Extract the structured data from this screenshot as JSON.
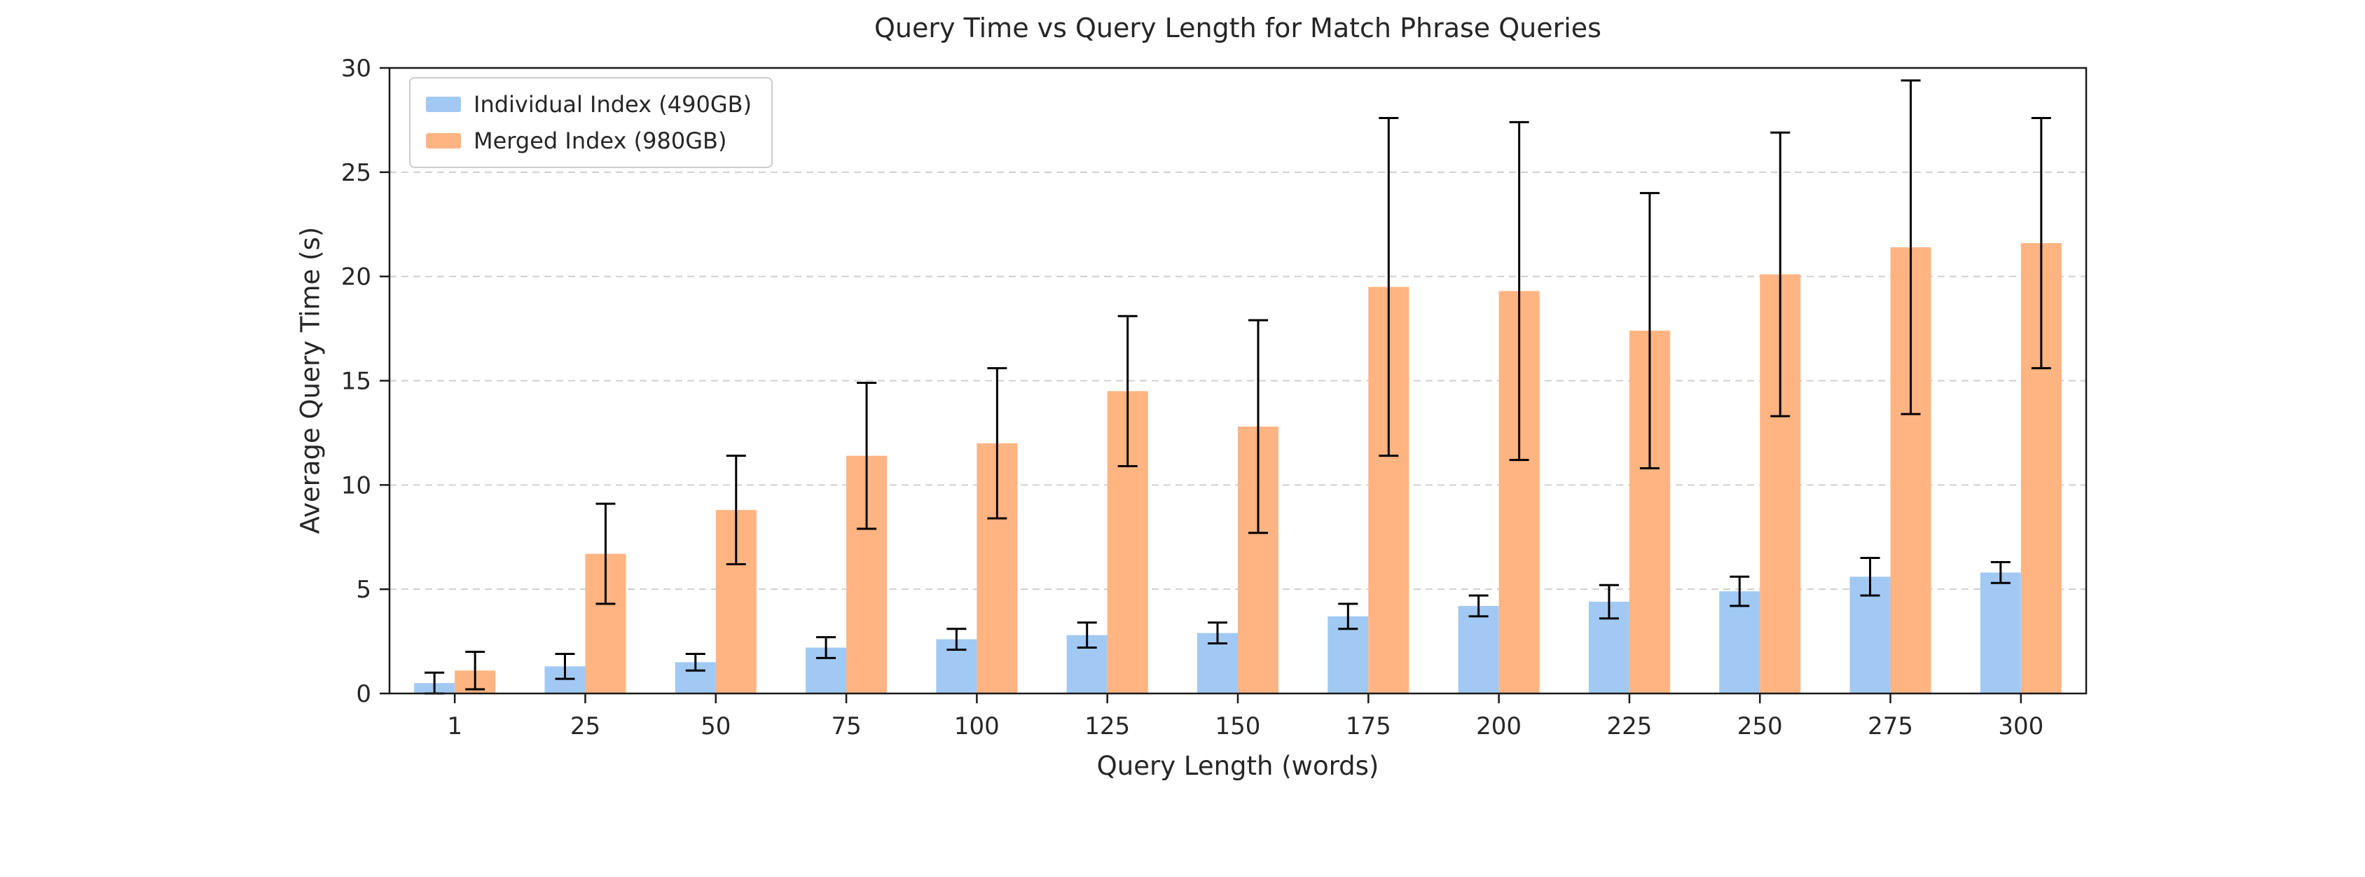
{
  "chart_data": {
    "type": "bar",
    "title": "Query Time vs Query Length for Match Phrase Queries",
    "xlabel": "Query Length (words)",
    "ylabel": "Average Query Time (s)",
    "categories": [
      "1",
      "25",
      "50",
      "75",
      "100",
      "125",
      "150",
      "175",
      "200",
      "225",
      "250",
      "275",
      "300"
    ],
    "ylim": [
      0,
      30
    ],
    "yticks": [
      0,
      5,
      10,
      15,
      20,
      25,
      30
    ],
    "grid": true,
    "grid_style": "dashed",
    "legend_position": "upper left",
    "error_bars": true,
    "colors": {
      "grid": "#d0d0d0",
      "spine": "#1a1a1a",
      "error": "#000000",
      "text": "#262626"
    },
    "series": [
      {
        "name": "Individual Index (490GB)",
        "color": "#a1c9f4",
        "values": [
          0.5,
          1.3,
          1.5,
          2.2,
          2.6,
          2.8,
          2.9,
          3.7,
          4.2,
          4.4,
          4.9,
          5.6,
          5.8
        ],
        "errors": [
          0.5,
          0.6,
          0.4,
          0.5,
          0.5,
          0.6,
          0.5,
          0.6,
          0.5,
          0.8,
          0.7,
          0.9,
          0.5
        ]
      },
      {
        "name": "Merged Index (980GB)",
        "color": "#ffb482",
        "values": [
          1.1,
          6.7,
          8.8,
          11.4,
          12.0,
          14.5,
          12.8,
          19.5,
          19.3,
          17.4,
          20.1,
          21.4,
          21.6
        ],
        "errors": [
          0.9,
          2.4,
          2.6,
          3.5,
          3.6,
          3.6,
          5.1,
          8.1,
          8.1,
          6.6,
          6.8,
          8.0,
          6.0
        ]
      }
    ]
  }
}
